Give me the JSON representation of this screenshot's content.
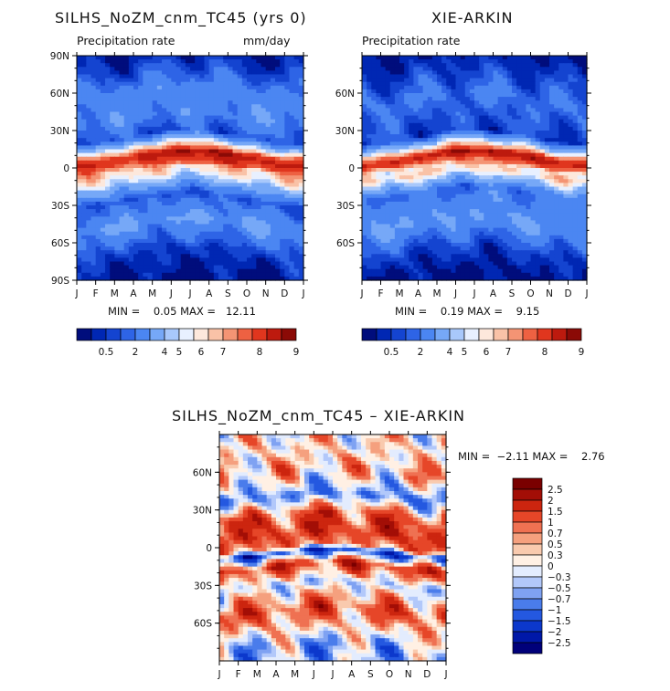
{
  "colors": {
    "abs_scale": [
      "#000d7c",
      "#0027b3",
      "#1444d0",
      "#2e64e6",
      "#4b86f2",
      "#76a8f7",
      "#a8c8fb",
      "#e8f0ff",
      "#fde8dc",
      "#f9c2a7",
      "#f49474",
      "#ee6142",
      "#e0361e",
      "#bd1a0e",
      "#8b0a06"
    ],
    "diff_scale": [
      "#00007a",
      "#0018a8",
      "#0c38cc",
      "#2458e0",
      "#4a7ceb",
      "#7fa2f2",
      "#b2c8fa",
      "#e3ecfe",
      "#fff0e4",
      "#f9caae",
      "#f5a07e",
      "#ef7152",
      "#e64628",
      "#cc250f",
      "#a30e06",
      "#7a0000"
    ]
  },
  "panels": {
    "model": {
      "title": "SILHS_NoZM_cnm_TC45 (yrs 0)",
      "subtitle_left": "Precipitation rate",
      "subtitle_right": "mm/day",
      "minmax_text": "MIN =    0.05 MAX =   12.11"
    },
    "obs": {
      "title": "XIE-ARKIN",
      "subtitle_left": "Precipitation rate",
      "subtitle_right": "",
      "minmax_text": "MIN =    0.19 MAX =    9.15"
    },
    "diff": {
      "title": "SILHS_NoZM_cnm_TC45 – XIE-ARKIN",
      "minmax_text": "MIN =  −2.11 MAX =    2.76"
    }
  },
  "chart_data": [
    {
      "type": "heatmap",
      "title": "SILHS_NoZM_cnm_TC45 (yrs 0)",
      "subtitle": "Precipitation rate",
      "units": "mm/day",
      "x_ticks": [
        "J",
        "F",
        "M",
        "A",
        "M",
        "J",
        "J",
        "A",
        "S",
        "O",
        "N",
        "D",
        "J"
      ],
      "y_ticks": [
        "90N",
        "60N",
        "30N",
        "0",
        "30S",
        "60S",
        "90S"
      ],
      "ylim": [
        -90,
        90
      ],
      "colorbar_levels": [
        "0.5",
        "2",
        "4",
        "5",
        "6",
        "7",
        "8",
        "9"
      ],
      "min": 0.05,
      "max": 12.11,
      "approx_zonal_mean_mm_day": [
        {
          "lat": 90,
          "value": 0.5
        },
        {
          "lat": 60,
          "value": 2.5
        },
        {
          "lat": 40,
          "value": 2.5
        },
        {
          "lat": 25,
          "value": 1.5
        },
        {
          "lat": 8,
          "value": 8
        },
        {
          "lat": 0,
          "value": 6
        },
        {
          "lat": -8,
          "value": 5
        },
        {
          "lat": -25,
          "value": 1.5
        },
        {
          "lat": -45,
          "value": 3
        },
        {
          "lat": -70,
          "value": 1
        },
        {
          "lat": -90,
          "value": 0.3
        }
      ]
    },
    {
      "type": "heatmap",
      "title": "XIE-ARKIN",
      "subtitle": "Precipitation rate",
      "x_ticks": [
        "J",
        "F",
        "M",
        "A",
        "M",
        "J",
        "J",
        "A",
        "S",
        "O",
        "N",
        "D",
        "J"
      ],
      "y_ticks": [
        "60N",
        "30N",
        "0",
        "30S",
        "60S"
      ],
      "ylim": [
        -90,
        90
      ],
      "colorbar_levels": [
        "0.5",
        "2",
        "4",
        "5",
        "6",
        "7",
        "8",
        "9"
      ],
      "min": 0.19,
      "max": 9.15,
      "approx_zonal_mean_mm_day": [
        {
          "lat": 90,
          "value": 0.5
        },
        {
          "lat": 55,
          "value": 2
        },
        {
          "lat": 25,
          "value": 1.2
        },
        {
          "lat": 8,
          "value": 8
        },
        {
          "lat": 0,
          "value": 5
        },
        {
          "lat": -5,
          "value": 5.5
        },
        {
          "lat": -20,
          "value": 2
        },
        {
          "lat": -45,
          "value": 3
        },
        {
          "lat": -70,
          "value": 1
        },
        {
          "lat": -90,
          "value": 0.3
        }
      ]
    },
    {
      "type": "heatmap",
      "title": "SILHS_NoZM_cnm_TC45 – XIE-ARKIN",
      "x_ticks": [
        "J",
        "F",
        "M",
        "A",
        "M",
        "J",
        "J",
        "A",
        "S",
        "O",
        "N",
        "D",
        "J"
      ],
      "y_ticks": [
        "60N",
        "30N",
        "0",
        "30S",
        "60S"
      ],
      "ylim": [
        -90,
        90
      ],
      "colorbar_levels": [
        "2.5",
        "2",
        "1.5",
        "1",
        "0.7",
        "0.5",
        "0.3",
        "0",
        "−0.3",
        "−0.5",
        "−0.7",
        "−1",
        "−1.5",
        "−2",
        "−2.5"
      ],
      "min": -2.11,
      "max": 2.76,
      "approx_zonal_mean_diff_mm_day": [
        {
          "lat": 75,
          "value": 0.2
        },
        {
          "lat": 60,
          "value": 0.5
        },
        {
          "lat": 40,
          "value": -0.8
        },
        {
          "lat": 25,
          "value": 1.2
        },
        {
          "lat": 10,
          "value": 1.5
        },
        {
          "lat": 0,
          "value": 0.8
        },
        {
          "lat": -5,
          "value": -1.5
        },
        {
          "lat": -15,
          "value": 1.5
        },
        {
          "lat": -30,
          "value": -0.3
        },
        {
          "lat": -50,
          "value": 1.2
        },
        {
          "lat": -80,
          "value": -0.5
        }
      ]
    }
  ]
}
